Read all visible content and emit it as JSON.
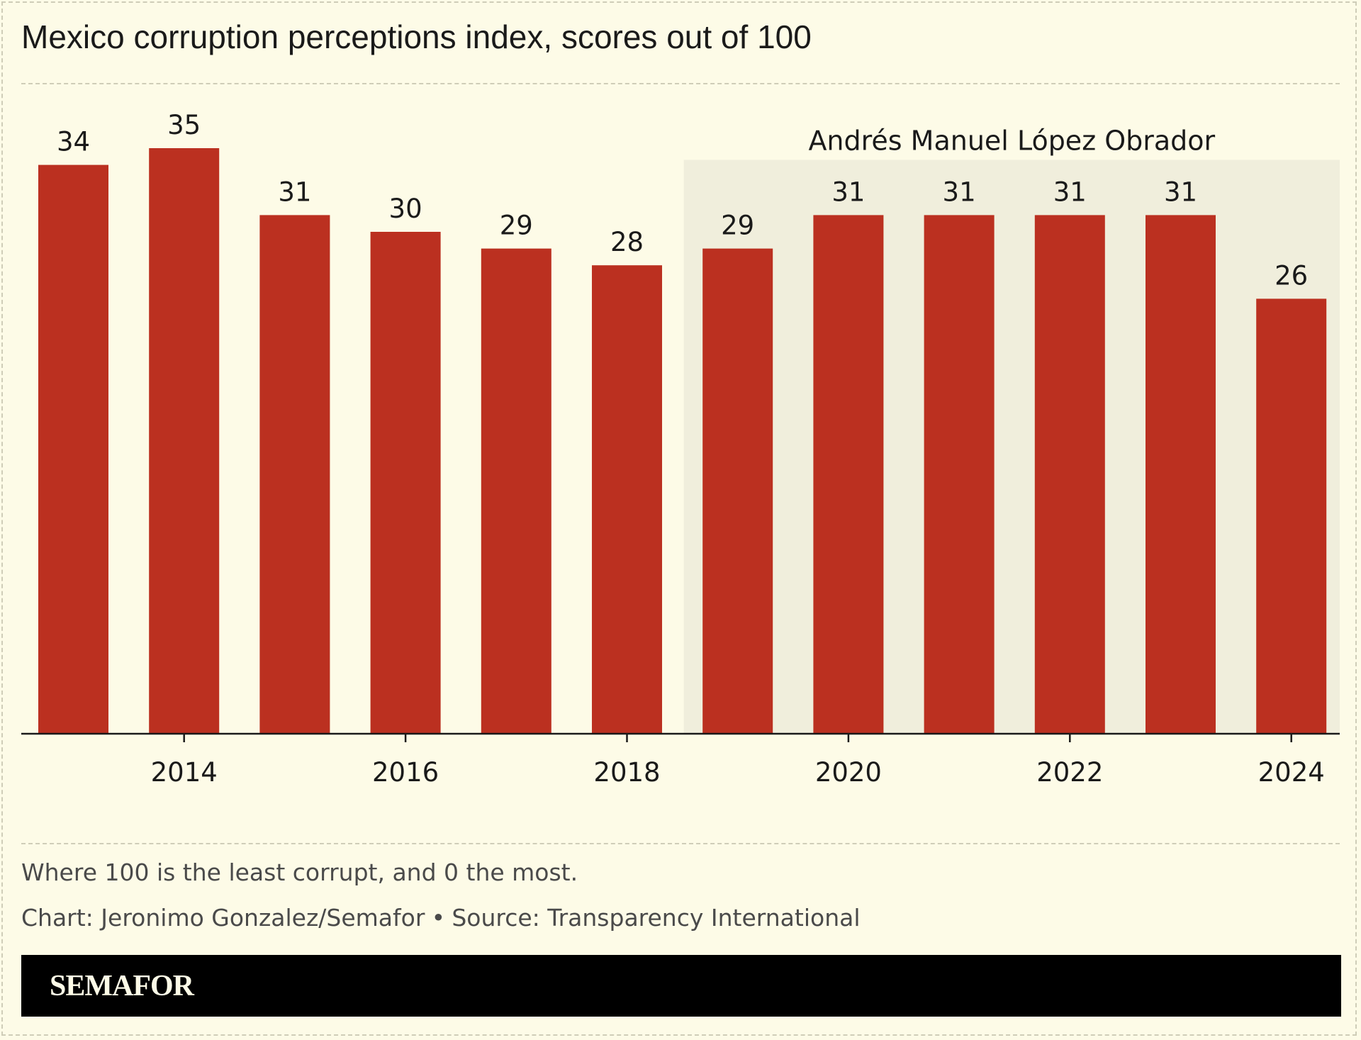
{
  "header": {
    "title": "Mexico corruption perceptions index, scores out of 100"
  },
  "footer": {
    "note": "Where 100 is the least corrupt, and 0 the most.",
    "credit_chart": "Chart: Jeronimo Gonzalez/Semafor",
    "credit_separator": "•",
    "credit_source": "Source: Transparency International",
    "brand": "SEMAFOR"
  },
  "colors": {
    "bar": "#bb3020",
    "highlight_region": "#f0eedc",
    "background": "#fdfbe7",
    "axis": "#1a1a1a",
    "brand_bar": "#000000"
  },
  "chart_data": {
    "type": "bar",
    "x": [
      2013,
      2014,
      2015,
      2016,
      2017,
      2018,
      2019,
      2020,
      2021,
      2022,
      2023,
      2024
    ],
    "values": [
      34,
      35,
      31,
      30,
      29,
      28,
      29,
      31,
      31,
      31,
      31,
      26
    ],
    "value_labels": [
      "34",
      "35",
      "31",
      "30",
      "29",
      "28",
      "29",
      "31",
      "31",
      "31",
      "31",
      "26"
    ],
    "x_tick_values": [
      2014,
      2016,
      2018,
      2020,
      2022,
      2024
    ],
    "x_tick_labels": [
      "2014",
      "2016",
      "2018",
      "2020",
      "2022",
      "2024"
    ],
    "ylim": [
      0,
      35
    ],
    "grid": false,
    "highlight": {
      "label": "Andrés Manuel López Obrador",
      "from": 2019,
      "to": 2024
    }
  }
}
